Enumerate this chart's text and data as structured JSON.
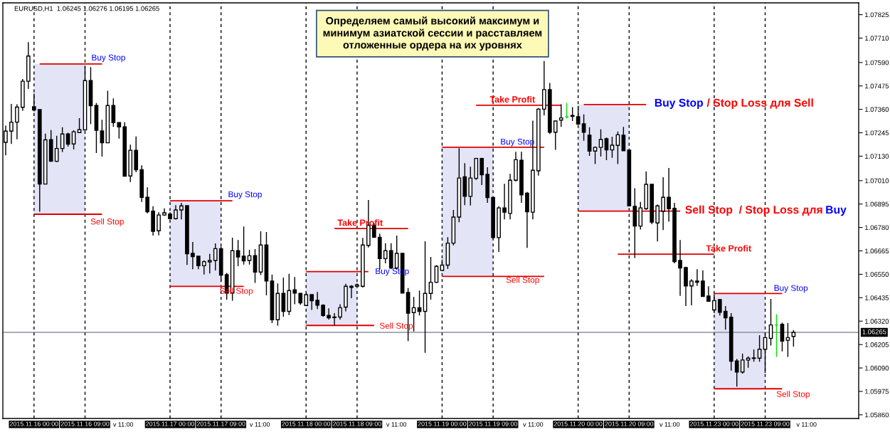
{
  "chart_data": {
    "type": "candlestick",
    "title": "EURUSD,H1  1.06245 1.06276 1.06195 1.06265",
    "categories": [
      null,
      null,
      null,
      null,
      null,
      "2015.11.16 00:00",
      null,
      null,
      null,
      null,
      null,
      null,
      null,
      null,
      "2015.11.16 09:00",
      null,
      null,
      null,
      null,
      null,
      null,
      null,
      null,
      null,
      null,
      null,
      null,
      null,
      null,
      "2015.11.17 00:00",
      null,
      null,
      null,
      null,
      null,
      null,
      null,
      null,
      "2015.11.17 09:00",
      null,
      null,
      null,
      null,
      null,
      null,
      null,
      null,
      null,
      null,
      null,
      null,
      null,
      null,
      "2015.11.18 00:00",
      null,
      null,
      null,
      null,
      null,
      null,
      null,
      null,
      "2015.11.18 09:00",
      null,
      null,
      null,
      null,
      null,
      null,
      null,
      null,
      null,
      null,
      null,
      null,
      null,
      null,
      "2015.11.19 00:00",
      null,
      null,
      null,
      null,
      null,
      null,
      null,
      null,
      "2015.11.19 09:00",
      null,
      null,
      null,
      null,
      null,
      null,
      null,
      null,
      null,
      null,
      null,
      null,
      null,
      null,
      "2015.11.20 00:00",
      null,
      null,
      null,
      null,
      null,
      null,
      null,
      null,
      "2015.11.20 09:00",
      null,
      null,
      null,
      null,
      null,
      null,
      null,
      null,
      null,
      null,
      null,
      null,
      null,
      null,
      "2015.11.23 00:00",
      null,
      null,
      null,
      null,
      null,
      null,
      null,
      null,
      "2015.11.23 09:00",
      null,
      null,
      null,
      null,
      null,
      null,
      null,
      null,
      null,
      null,
      null,
      null,
      null,
      null,
      null,
      null
    ],
    "ohlc": [
      [
        1.07198,
        1.0728,
        1.07134,
        1.07253
      ],
      [
        1.07253,
        1.07387,
        1.0719,
        1.07297
      ],
      [
        1.07297,
        1.07385,
        1.07213,
        1.07371
      ],
      [
        1.0737,
        1.07509,
        1.07353,
        1.07498
      ],
      [
        1.07498,
        1.0769,
        1.0746,
        1.07622
      ],
      [
        1.07373,
        1.07437,
        1.0735,
        1.07357
      ],
      [
        1.07359,
        1.07361,
        1.06857,
        1.06993
      ],
      [
        1.06993,
        1.07241,
        1.06991,
        1.0721
      ],
      [
        1.07211,
        1.07258,
        1.07103,
        1.07105
      ],
      [
        1.07105,
        1.0723,
        1.07101,
        1.07168
      ],
      [
        1.07168,
        1.07272,
        1.0715,
        1.07239
      ],
      [
        1.07239,
        1.07245,
        1.07177,
        1.07189
      ],
      [
        1.0719,
        1.07257,
        1.07163,
        1.0725
      ],
      [
        1.07246,
        1.07317,
        1.07245,
        1.0726
      ],
      [
        1.07259,
        1.07571,
        1.07257,
        1.07501
      ],
      [
        1.07501,
        1.07568,
        1.07287,
        1.07378
      ],
      [
        1.07379,
        1.07391,
        1.07146,
        1.07257
      ],
      [
        1.07254,
        1.07309,
        1.07128,
        1.07196
      ],
      [
        1.07196,
        1.07451,
        1.07194,
        1.07379
      ],
      [
        1.07379,
        1.07414,
        1.07274,
        1.07295
      ],
      [
        1.07295,
        1.07297,
        1.07216,
        1.07274
      ],
      [
        1.07274,
        1.07297,
        1.07029,
        1.07032
      ],
      [
        1.07033,
        1.07187,
        1.07003,
        1.07159
      ],
      [
        1.07159,
        1.07227,
        1.07051,
        1.07063
      ],
      [
        1.07064,
        1.07085,
        1.06905,
        1.06928
      ],
      [
        1.06928,
        1.06977,
        1.06849,
        1.06857
      ],
      [
        1.0686,
        1.06884,
        1.0674,
        1.06761
      ],
      [
        1.06764,
        1.06855,
        1.06741,
        1.06841
      ],
      [
        1.06841,
        1.06874,
        1.06837,
        1.06852
      ],
      [
        1.06846,
        1.06855,
        1.0682,
        1.06823
      ],
      [
        1.06823,
        1.0689,
        1.06819,
        1.06866
      ],
      [
        1.06866,
        1.06901,
        1.0682,
        1.06886
      ],
      [
        1.06887,
        1.0689,
        1.06596,
        1.06651
      ],
      [
        1.06653,
        1.06709,
        1.06575,
        1.06637
      ],
      [
        1.06639,
        1.06641,
        1.06575,
        1.06592
      ],
      [
        1.06592,
        1.06619,
        1.06549,
        1.06612
      ],
      [
        1.06611,
        1.0665,
        1.06554,
        1.06618
      ],
      [
        1.06618,
        1.06702,
        1.06569,
        1.06676
      ],
      [
        1.06676,
        1.06686,
        1.06517,
        1.06546
      ],
      [
        1.06548,
        1.06557,
        1.06426,
        1.06458
      ],
      [
        1.06458,
        1.0673,
        1.0642,
        1.06666
      ],
      [
        1.06666,
        1.06718,
        1.0659,
        1.06635
      ],
      [
        1.06639,
        1.06785,
        1.06598,
        1.06616
      ],
      [
        1.06618,
        1.0667,
        1.06598,
        1.06641
      ],
      [
        1.06642,
        1.06674,
        1.06508,
        1.06561
      ],
      [
        1.06561,
        1.06761,
        1.06546,
        1.06694
      ],
      [
        1.06694,
        1.06758,
        1.06447,
        1.06517
      ],
      [
        1.06517,
        1.06549,
        1.0631,
        1.06327
      ],
      [
        1.06327,
        1.06505,
        1.06298,
        1.06456
      ],
      [
        1.06456,
        1.06534,
        1.06342,
        1.06368
      ],
      [
        1.06368,
        1.06552,
        1.0635,
        1.0647
      ],
      [
        1.06474,
        1.06537,
        1.06403,
        1.06458
      ],
      [
        1.06456,
        1.06458,
        1.064,
        1.0641
      ],
      [
        1.06397,
        1.06455,
        1.06394,
        1.0645
      ],
      [
        1.0645,
        1.06453,
        1.06375,
        1.0642
      ],
      [
        1.06422,
        1.06463,
        1.06379,
        1.06398
      ],
      [
        1.06398,
        1.06403,
        1.06342,
        1.06348
      ],
      [
        1.06348,
        1.06383,
        1.06328,
        1.06336
      ],
      [
        1.0634,
        1.06359,
        1.06299,
        1.06337
      ],
      [
        1.0634,
        1.06403,
        1.06328,
        1.06386
      ],
      [
        1.06389,
        1.06503,
        1.06368,
        1.06491
      ],
      [
        1.06491,
        1.06496,
        1.06433,
        1.06486
      ],
      [
        1.06491,
        1.06505,
        1.06488,
        1.06498
      ],
      [
        1.06491,
        1.06729,
        1.06485,
        1.06694
      ],
      [
        1.06692,
        1.06915,
        1.06682,
        1.06791
      ],
      [
        1.06791,
        1.06802,
        1.06729,
        1.06732
      ],
      [
        1.06732,
        1.0675,
        1.06575,
        1.06627
      ],
      [
        1.06627,
        1.06703,
        1.06604,
        1.06666
      ],
      [
        1.06666,
        1.06703,
        1.06575,
        1.06581
      ],
      [
        1.06581,
        1.0674,
        1.06572,
        1.06653
      ],
      [
        1.06653,
        1.06655,
        1.06456,
        1.06458
      ],
      [
        1.06461,
        1.06482,
        1.06222,
        1.06359
      ],
      [
        1.06362,
        1.06439,
        1.06269,
        1.06386
      ],
      [
        1.06386,
        1.0647,
        1.06348,
        1.06368
      ],
      [
        1.06368,
        1.06712,
        1.06164,
        1.06456
      ],
      [
        1.06456,
        1.06635,
        1.06426,
        1.06511
      ],
      [
        1.06511,
        1.06595,
        1.06507,
        1.06589
      ],
      [
        1.06569,
        1.06622,
        1.06566,
        1.06595
      ],
      [
        1.06595,
        1.06732,
        1.06577,
        1.06703
      ],
      [
        1.06703,
        1.06866,
        1.06692,
        1.06831
      ],
      [
        1.06831,
        1.07169,
        1.06806,
        1.07023
      ],
      [
        1.07029,
        1.07096,
        1.0689,
        1.06933
      ],
      [
        1.06933,
        1.07078,
        1.06888,
        1.07023
      ],
      [
        1.07021,
        1.07122,
        1.07014,
        1.07119
      ],
      [
        1.07119,
        1.07122,
        1.06988,
        1.07039
      ],
      [
        1.07041,
        1.07076,
        1.06901,
        1.06927
      ],
      [
        1.06927,
        1.0693,
        1.06726,
        1.0673
      ],
      [
        1.0673,
        1.06884,
        1.0666,
        1.06876
      ],
      [
        1.06876,
        1.06994,
        1.0682,
        1.06855
      ],
      [
        1.06849,
        1.07043,
        1.0682,
        1.07012
      ],
      [
        1.07012,
        1.07152,
        1.07006,
        1.07113
      ],
      [
        1.0711,
        1.07152,
        1.06901,
        1.0694
      ],
      [
        1.06948,
        1.06954,
        1.0668,
        1.06857
      ],
      [
        1.06855,
        1.07305,
        1.0682,
        1.07061
      ],
      [
        1.07058,
        1.07367,
        1.07035,
        1.07361
      ],
      [
        1.07361,
        1.07597,
        1.0733,
        1.07457
      ],
      [
        1.07457,
        1.0749,
        1.07239,
        1.07248
      ],
      [
        1.07248,
        1.07305,
        1.07161,
        1.07303
      ],
      [
        1.07307,
        1.07385,
        1.07274,
        1.07318
      ],
      [
        1.07324,
        1.07391,
        1.07315,
        1.07324
      ],
      [
        1.0733,
        1.07371,
        1.07303,
        1.07325
      ],
      [
        1.07324,
        1.07377,
        1.07286,
        1.07288
      ],
      [
        1.07289,
        1.07335,
        1.07206,
        1.07248
      ],
      [
        1.07233,
        1.07272,
        1.07132,
        1.07155
      ],
      [
        1.07155,
        1.07178,
        1.07091,
        1.07173
      ],
      [
        1.07173,
        1.07262,
        1.07128,
        1.07212
      ],
      [
        1.07216,
        1.07222,
        1.07111,
        1.07161
      ],
      [
        1.07161,
        1.07225,
        1.07122,
        1.07184
      ],
      [
        1.07183,
        1.07251,
        1.07091,
        1.07235
      ],
      [
        1.07233,
        1.07274,
        1.07155,
        1.07157
      ],
      [
        1.0716,
        1.07162,
        1.06884,
        1.06886
      ],
      [
        1.06884,
        1.06973,
        1.0663,
        1.06787
      ],
      [
        1.06787,
        1.06905,
        1.0677,
        1.06876
      ],
      [
        1.06872,
        1.07055,
        1.06866,
        1.06992
      ],
      [
        1.06992,
        1.06994,
        1.06796,
        1.06806
      ],
      [
        1.06802,
        1.06893,
        1.06711,
        1.06886
      ],
      [
        1.0686,
        1.07027,
        1.06767,
        1.06928
      ],
      [
        1.06928,
        1.07072,
        1.06808,
        1.06872
      ],
      [
        1.06874,
        1.06901,
        1.06604,
        1.06612
      ],
      [
        1.06618,
        1.06718,
        1.06444,
        1.06581
      ],
      [
        1.06583,
        1.06587,
        1.06394,
        1.06493
      ],
      [
        1.06493,
        1.06526,
        1.06398,
        1.06517
      ],
      [
        1.06517,
        1.06575,
        1.06493,
        1.06511
      ],
      [
        1.06517,
        1.06569,
        1.06439,
        1.06441
      ],
      [
        1.06443,
        1.06491,
        1.06416,
        1.06418
      ],
      [
        1.06375,
        1.06453,
        1.06359,
        1.06421
      ],
      [
        1.06426,
        1.06429,
        1.06348,
        1.06363
      ],
      [
        1.06368,
        1.06394,
        1.06278,
        1.06336
      ],
      [
        1.06339,
        1.06359,
        1.06077,
        1.06123
      ],
      [
        1.06124,
        1.06135,
        1.05998,
        1.0607
      ],
      [
        1.0607,
        1.0616,
        1.06062,
        1.06129
      ],
      [
        1.06129,
        1.06147,
        1.06091,
        1.06138
      ],
      [
        1.06137,
        1.06181,
        1.06121,
        1.06139
      ],
      [
        1.06138,
        1.06251,
        1.06121,
        1.06182
      ],
      [
        1.06182,
        1.06263,
        1.06066,
        1.06239
      ],
      [
        1.06235,
        1.06429,
        1.062,
        1.06301
      ],
      [
        1.06301,
        1.06354,
        1.06144,
        1.06301
      ],
      [
        1.06304,
        1.06313,
        1.06171,
        1.06222
      ],
      [
        1.06226,
        1.0631,
        1.06144,
        1.06239
      ],
      [
        1.06245,
        1.06276,
        1.06195,
        1.06265
      ],
      null,
      null,
      null,
      null,
      null,
      null,
      null,
      null,
      null,
      null,
      null
    ],
    "ylim": [
      1.05842,
      1.07883
    ],
    "yticks": [
      1.07825,
      {
        "value": 1.0771,
        "label": "1.07710"
      },
      {
        "value": 1.0759,
        "label": "1.07590"
      },
      1.07475,
      {
        "value": 1.0736,
        "label": "1.07360"
      },
      1.07245,
      {
        "value": 1.0713,
        "label": "1.07130"
      },
      {
        "value": 1.0701,
        "label": "1.07010"
      },
      1.06895,
      {
        "value": 1.0678,
        "label": "1.06780"
      },
      1.06665,
      {
        "value": 1.0655,
        "label": "1.06550"
      },
      1.06435,
      {
        "value": 1.0632,
        "label": "1.06320"
      },
      1.06205,
      {
        "value": 1.0609,
        "label": "1.06090"
      },
      1.05975,
      {
        "value": 1.0586,
        "label": "1.05860"
      }
    ],
    "grid": "x",
    "series": [
      {
        "type": "line",
        "color": "#e00000",
        "values": [
          null,
          null,
          null,
          null,
          null,
          null,
          1.07583,
          1.07583,
          1.07583,
          1.07583,
          1.07583,
          1.07583,
          1.07583,
          1.07583,
          1.07583,
          1.07583,
          1.07583,
          1.07583,
          null,
          null,
          null,
          null,
          null,
          null,
          null,
          null,
          null,
          null,
          null,
          1.06911,
          1.06911,
          1.06911,
          1.06911,
          1.06911,
          1.06911,
          1.06911,
          1.06911,
          1.06911,
          1.06911,
          1.06911,
          1.06911,
          null,
          null,
          null,
          null,
          null,
          null,
          null,
          null,
          null,
          null,
          null,
          null,
          1.06563,
          1.06563,
          1.06563,
          1.06563,
          1.06563,
          1.06563,
          1.06563,
          1.06563,
          1.06563,
          1.06563,
          1.06563,
          1.06563,
          null,
          null,
          null,
          null,
          null,
          null,
          null,
          null,
          null,
          null,
          null,
          null,
          1.07174,
          1.07174,
          1.07174,
          1.07174,
          1.07174,
          1.07174,
          1.07174,
          1.07174,
          1.07174,
          1.07174,
          1.07174,
          1.07174,
          1.07174,
          1.07174,
          1.07174,
          1.07174,
          1.07174,
          1.07174,
          1.07174,
          null,
          null,
          null,
          null,
          null,
          null,
          1.07384,
          1.07384,
          1.07384,
          1.07384,
          1.07384,
          1.07384,
          1.07384,
          1.07384,
          1.07384,
          1.07384,
          1.07384,
          1.07384,
          null,
          null,
          null,
          null,
          null,
          null,
          null,
          null,
          null,
          null,
          null,
          1.06456,
          1.06456,
          1.06456,
          1.06456,
          1.06456,
          1.06456,
          1.06456,
          1.06456,
          1.06456,
          1.06456,
          1.06456,
          1.06456,
          1.06456,
          null,
          null,
          null,
          null,
          null,
          null,
          null,
          null,
          null,
          null,
          null,
          null,
          null
        ],
        "upper": [
          null,
          null,
          null,
          null,
          null,
          1.07583,
          1.07583,
          1.07583,
          1.07583,
          1.07583,
          1.07583,
          1.07583,
          1.07583,
          1.07583,
          1.07583,
          null,
          null,
          null,
          null,
          null,
          null,
          null,
          null,
          null,
          null,
          null,
          null,
          null,
          null,
          1.06911,
          1.06911,
          1.06911,
          1.06911,
          1.06911,
          1.06911,
          1.06911,
          1.06911,
          1.06911,
          1.06911,
          null,
          null,
          null,
          null,
          null,
          null,
          null,
          null,
          null,
          null,
          null,
          null,
          null,
          null,
          1.06563,
          1.06563,
          1.06563,
          1.06563,
          1.06563,
          1.06563,
          1.06563,
          1.06563,
          1.06563,
          1.06563,
          null,
          null,
          null,
          null,
          null,
          null,
          null,
          null,
          null,
          null,
          null,
          null,
          null,
          null,
          1.07174,
          1.07174,
          1.07174,
          1.07174,
          1.07174,
          1.07174,
          1.07174,
          1.07174,
          1.07174,
          1.07174,
          null,
          null,
          null,
          null,
          null,
          null,
          null,
          null,
          null,
          null,
          null,
          null,
          null,
          null,
          1.07384,
          1.07384,
          1.07384,
          1.07384,
          1.07384,
          1.07384,
          1.07384,
          1.07384,
          1.07384,
          1.07384,
          null,
          null,
          null,
          null,
          null,
          null,
          null,
          null,
          null,
          null,
          null,
          null,
          null,
          null,
          1.06456,
          1.06456,
          1.06456,
          1.06456,
          1.06456,
          1.06456,
          1.06456,
          1.06456,
          1.06456,
          1.06456,
          null,
          null,
          null,
          null,
          null,
          null,
          null,
          null,
          null,
          null,
          null,
          null,
          null,
          null,
          null,
          null
        ],
        "lower": [
          null,
          null,
          null,
          null,
          null,
          1.06845,
          1.06845,
          1.06845,
          1.06845,
          1.06845,
          1.06845,
          1.06845,
          1.06845,
          1.06845,
          1.06845,
          null,
          null,
          null,
          null,
          null,
          null,
          null,
          null,
          null,
          null,
          null,
          null,
          null,
          null,
          1.06491,
          1.06491,
          1.06491,
          1.06491,
          1.06491,
          1.06491,
          1.06491,
          1.06491,
          1.06491,
          1.06491,
          null,
          null,
          null,
          null,
          null,
          null,
          null,
          null,
          null,
          null,
          null,
          null,
          null,
          null,
          1.06299,
          1.06299,
          1.06299,
          1.06299,
          1.06299,
          1.06299,
          1.06299,
          1.06299,
          1.06299,
          1.06299,
          null,
          null,
          null,
          null,
          null,
          null,
          null,
          null,
          null,
          null,
          null,
          null,
          null,
          null,
          1.0654,
          1.0654,
          1.0654,
          1.0654,
          1.0654,
          1.0654,
          1.0654,
          1.0654,
          1.0654,
          1.0654,
          null,
          null,
          null,
          null,
          null,
          null,
          null,
          null,
          null,
          null,
          null,
          null,
          null,
          null,
          1.0686,
          1.0686,
          1.0686,
          1.0686,
          1.0686,
          1.0686,
          1.0686,
          1.0686,
          1.0686,
          1.0686,
          null,
          null,
          null,
          null,
          null,
          null,
          null,
          null,
          null,
          null,
          null,
          null,
          null,
          null,
          1.05988,
          1.05988,
          1.05988,
          1.05988,
          1.05988,
          1.05988,
          1.05988,
          1.05988,
          1.05988,
          1.05988,
          null,
          null,
          null,
          null,
          null,
          null,
          null,
          null,
          null,
          null,
          null,
          null,
          null,
          null,
          null,
          null
        ]
      },
      {
        "type": "line",
        "color": "#e00000",
        "values": [
          null,
          null,
          null,
          null,
          null,
          1.06845,
          1.06845,
          1.06845,
          1.06845,
          1.06845,
          1.06845,
          1.06845,
          1.06845,
          1.06845,
          1.06845,
          1.06845,
          1.06845,
          1.06845,
          null,
          null,
          null,
          null,
          null,
          null,
          null,
          null,
          null,
          null,
          null,
          1.06491,
          1.06491,
          1.06491,
          1.06491,
          1.06491,
          1.06491,
          1.06491,
          1.06491,
          1.06491,
          1.06491,
          1.06491,
          1.06491,
          1.06491,
          1.06491,
          null,
          null,
          null,
          null,
          null,
          null,
          null,
          null,
          null,
          null,
          1.06299,
          1.06299,
          1.06299,
          1.06299,
          1.06299,
          1.06299,
          1.06299,
          1.06299,
          1.06299,
          1.06299,
          1.06299,
          1.06299,
          1.06299,
          null,
          null,
          null,
          null,
          null,
          null,
          null,
          null,
          null,
          null,
          null,
          1.0654,
          1.0654,
          1.0654,
          1.0654,
          1.0654,
          1.0654,
          1.0654,
          1.0654,
          1.0654,
          1.0654,
          1.0654,
          1.0654,
          1.0654,
          1.0654,
          1.0654,
          1.0654,
          1.0654,
          1.0654,
          1.0654,
          null,
          null,
          null,
          null,
          null,
          1.0686,
          1.0686,
          1.0686,
          1.0686,
          1.0686,
          1.0686,
          1.0686,
          1.0686,
          1.0686,
          1.0686,
          1.0686,
          1.0686,
          1.0686,
          1.0686,
          1.0686,
          1.0686,
          1.0686,
          1.0686,
          1.0686,
          null,
          null,
          null,
          null,
          null,
          1.05988,
          1.05988,
          1.05988,
          1.05988,
          1.05988,
          1.05988,
          1.05988,
          1.05988,
          1.05988,
          1.05988,
          1.05988,
          1.05988,
          1.05988,
          null,
          null,
          null,
          null,
          null,
          null,
          null,
          null,
          null,
          null,
          null,
          null,
          null
        ]
      },
      {
        "type": "line",
        "color": "#e00000",
        "values": [
          null,
          null,
          null,
          null,
          null,
          null,
          null,
          null,
          null,
          null,
          null,
          null,
          null,
          null,
          null,
          null,
          null,
          null,
          null,
          null,
          null,
          null,
          null,
          null,
          null,
          null,
          null,
          null,
          null,
          null,
          null,
          null,
          null,
          null,
          null,
          null,
          null,
          null,
          null,
          null,
          null,
          null,
          null,
          null,
          null,
          null,
          null,
          null,
          null,
          null,
          null,
          null,
          null,
          null,
          null,
          null,
          null,
          null,
          1.06775,
          1.06775,
          1.06775,
          1.06775,
          1.06775,
          1.06775,
          1.06775,
          1.06775,
          1.06775,
          1.06775,
          1.06775,
          1.06775,
          1.06775,
          1.06775,
          null,
          null,
          null,
          null,
          null,
          null,
          null,
          null,
          null,
          null,
          null,
          1.0738,
          1.0738,
          1.0738,
          1.0738,
          1.0738,
          1.0738,
          1.0738,
          1.0738,
          1.0738,
          1.0738,
          1.0738,
          1.0738,
          1.0738,
          1.0738,
          1.0738,
          1.0738,
          null,
          null,
          null,
          null,
          null,
          null,
          null,
          null,
          null,
          1.06649,
          1.06649,
          1.06649,
          1.06649,
          1.06649,
          1.06649,
          1.06649,
          1.06649,
          1.06649,
          1.06649,
          1.06649,
          1.06649,
          1.06649,
          1.06649,
          1.06649,
          1.06649,
          1.06649,
          1.06649,
          null,
          null,
          null,
          null,
          null,
          null,
          null,
          null,
          null,
          null,
          null,
          null,
          null,
          null,
          null,
          null,
          null,
          null,
          null,
          null,
          null,
          null,
          null,
          null,
          null
        ]
      }
    ],
    "ref_lines": [
      {
        "axis": "y",
        "value": 1.06265,
        "label": "1.06265",
        "color": "#8a929c"
      }
    ],
    "annotations": [
      "Определяем самый высокий максимум и\nминимум азиатской сессии и расставляем\nотложенные ордера на их уровнях",
      "Buy Stop",
      "Sell Stop",
      "Buy Stop",
      "Sell Stop",
      "Take Profit",
      "Buy Stop",
      "Sell Stop",
      "Take Profit",
      "Buy Stop",
      "Sell Stop",
      "Buy Stop",
      "/ Stop Loss для Sell",
      "Sell Stop  / Stop Loss для",
      "Buy",
      "Take Profit",
      "Buy Stop",
      "Sell Stop",
      "v 11:00",
      "v 11:00",
      "v 11:00",
      "v 11:00",
      "v 11:00",
      "v 11:00"
    ]
  }
}
